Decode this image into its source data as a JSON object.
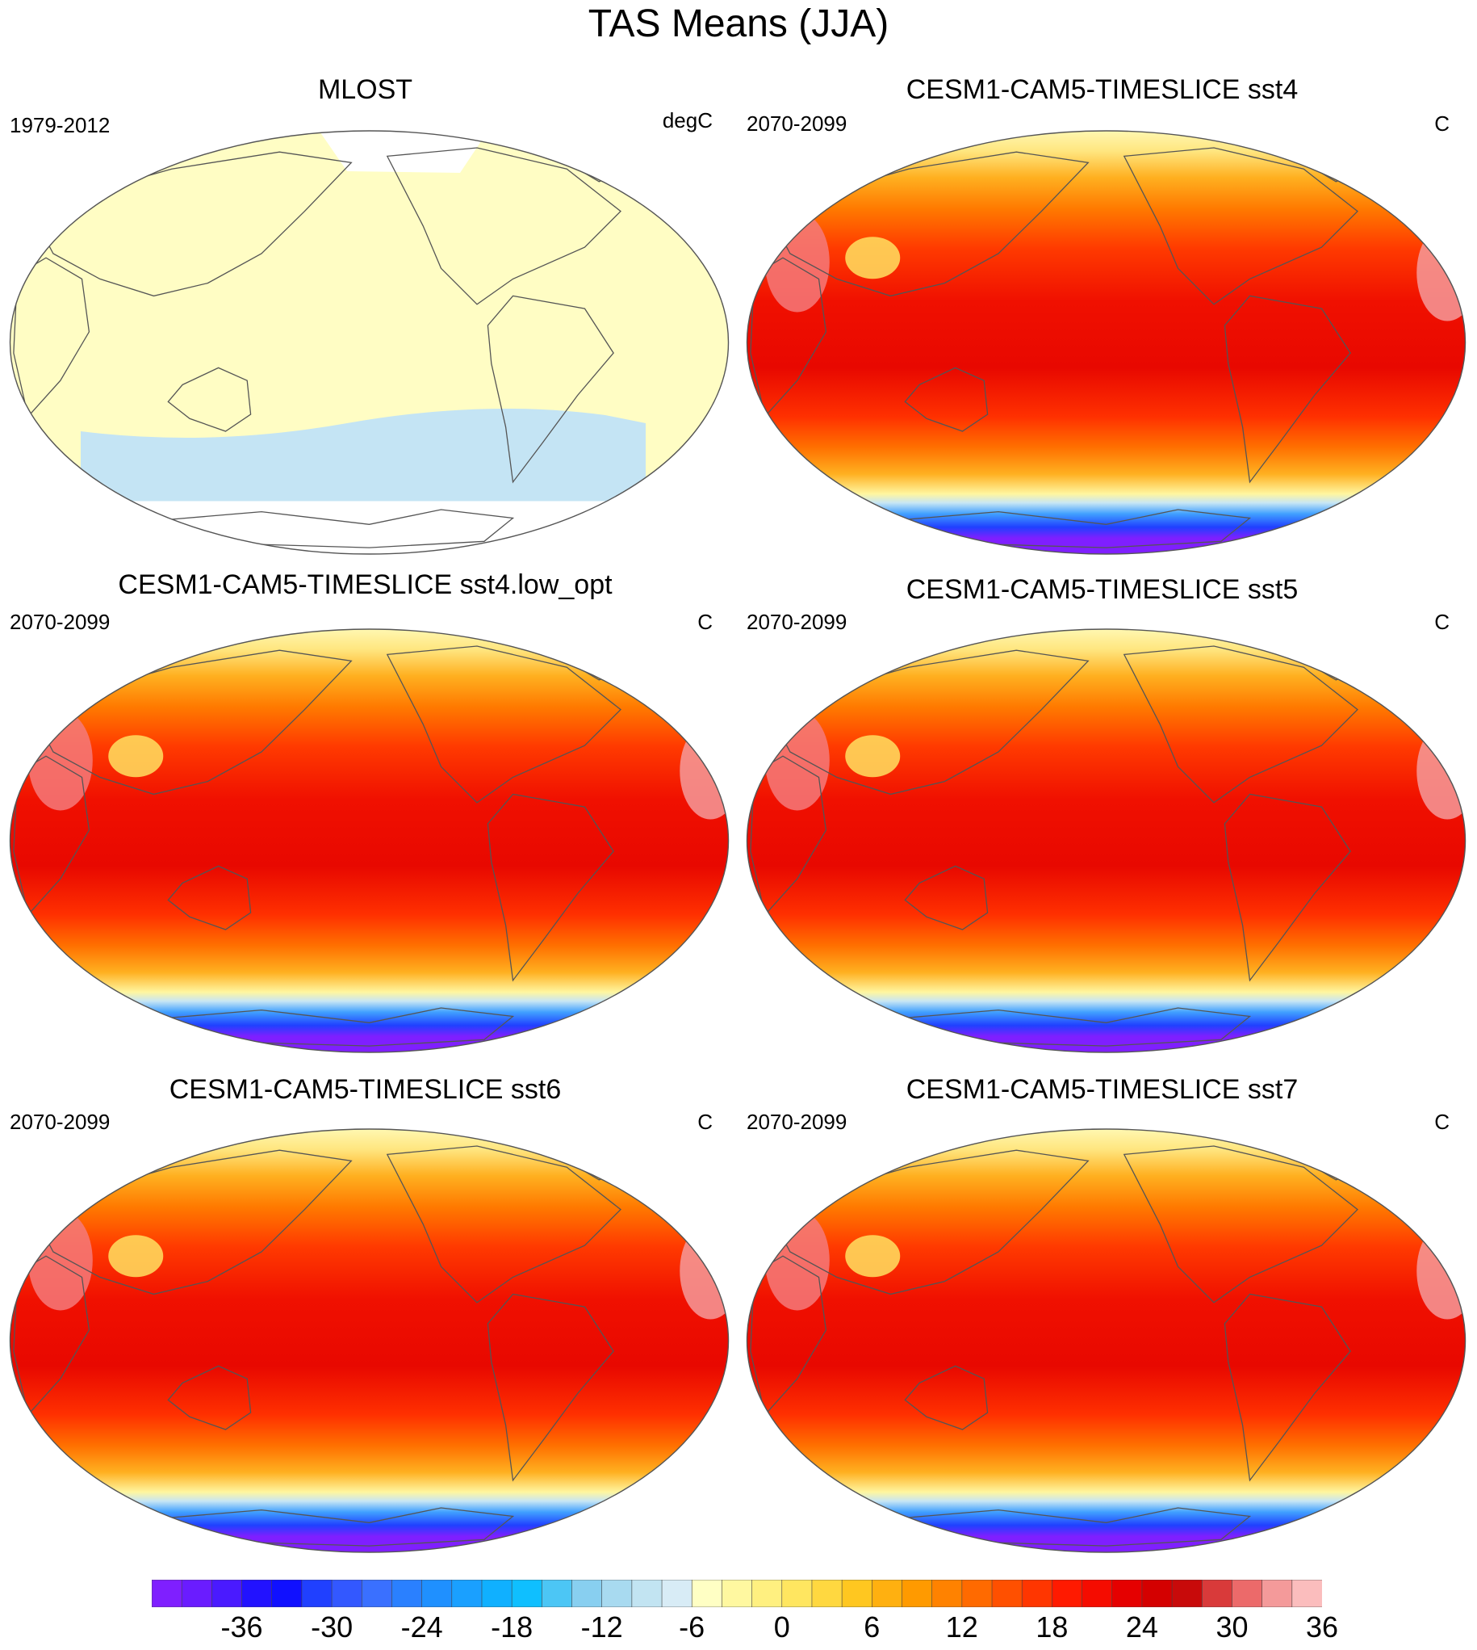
{
  "title": "TAS Means (JJA)",
  "panels": [
    {
      "title": "MLOST",
      "period": "1979-2012",
      "units": "degC",
      "style": "obs"
    },
    {
      "title": "CESM1-CAM5-TIMESLICE sst4",
      "period": "2070-2099",
      "units": "C",
      "style": "model"
    },
    {
      "title": "CESM1-CAM5-TIMESLICE sst4.low_opt",
      "period": "2070-2099",
      "units": "C",
      "style": "model"
    },
    {
      "title": "CESM1-CAM5-TIMESLICE sst5",
      "period": "2070-2099",
      "units": "C",
      "style": "model"
    },
    {
      "title": "CESM1-CAM5-TIMESLICE sst6",
      "period": "2070-2099",
      "units": "C",
      "style": "model"
    },
    {
      "title": "CESM1-CAM5-TIMESLICE sst7",
      "period": "2070-2099",
      "units": "C",
      "style": "model"
    }
  ],
  "colorbar": {
    "colors": [
      "#7f1fff",
      "#6a1cff",
      "#4a1aff",
      "#2212ff",
      "#1010ff",
      "#2040ff",
      "#3358ff",
      "#3a70ff",
      "#2a80ff",
      "#1f90ff",
      "#1aa0ff",
      "#10b0ff",
      "#0fbfff",
      "#4cc6f5",
      "#88cff0",
      "#a8daf0",
      "#c2e4f2",
      "#d8ecf6",
      "#ffffc4",
      "#fff8a0",
      "#fff080",
      "#ffe660",
      "#ffd840",
      "#ffc720",
      "#ffb010",
      "#ff9a00",
      "#ff8200",
      "#ff6a00",
      "#ff5000",
      "#ff3600",
      "#ff1a00",
      "#f50c00",
      "#e50000",
      "#d40000",
      "#c80a0a",
      "#d93a3a",
      "#ec6a6a",
      "#f49a9a",
      "#fbbdbd"
    ],
    "labels": [
      "-36",
      "-30",
      "-24",
      "-18",
      "-12",
      "-6",
      "0",
      "6",
      "12",
      "18",
      "24",
      "30",
      "36"
    ]
  }
}
